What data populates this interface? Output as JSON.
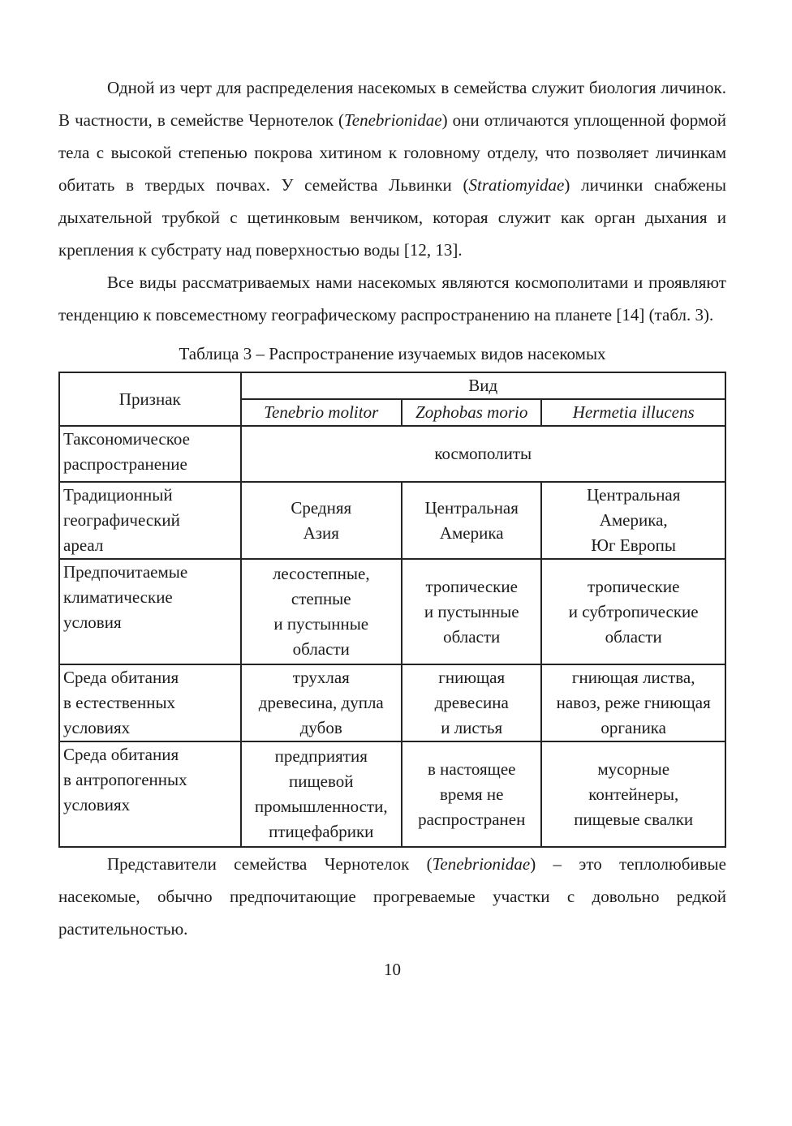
{
  "paragraphs": [
    {
      "segments": [
        {
          "t": "Одной из черт для распределения насекомых в семейства служит биология личинок. В частности, в семействе Чернотелок ("
        },
        {
          "t": "Tenebrionidae",
          "i": true
        },
        {
          "t": ") они отличаются уплощенной формой тела с высокой степенью покрова хитином к головному отделу, что позволяет личинкам обитать в твердых почвах. У семейства Львинки ("
        },
        {
          "t": "Stratiomyidae",
          "i": true
        },
        {
          "t": ") личинки снабжены дыхательной трубкой с щетинковым венчиком, которая служит как орган дыхания и крепления к субстрату над поверхностью воды [12, 13]."
        }
      ]
    },
    {
      "segments": [
        {
          "t": "Все виды рассматриваемых нами насекомых являются космополитами и проявляют тенденцию к повсеместному географическому распространению на планете [14] (табл. 3)."
        }
      ]
    },
    {
      "segments": [
        {
          "t": "Представители семейства Чернотелок ("
        },
        {
          "t": "Tenebrionidae",
          "i": true
        },
        {
          "t": ") – это теплолюбивые насекомые, обычно предпочитающие прогреваемые участки с довольно редкой растительностью."
        }
      ]
    }
  ],
  "table": {
    "caption": "Таблица 3 – Распространение изучаемых видов насекомых",
    "header": {
      "feature_col": "Признак",
      "group": "Вид",
      "species": [
        "Tenebrio molitor",
        "Zophobas morio",
        "Hermetia illucens"
      ]
    },
    "rows": [
      {
        "feature": "Таксономическое\nраспространение",
        "merged": "космополиты"
      },
      {
        "feature": "Традиционный\nгеографический\nареал",
        "cells": [
          "Средняя\nАзия",
          "Центральная\nАмерика",
          "Центральная\nАмерика,\nЮг Европы"
        ]
      },
      {
        "feature": "Предпочитаемые\nклиматические\nусловия",
        "cells": [
          "лесостепные,\nстепные\nи пустынные\nобласти",
          "тропические\nи пустынные\nобласти",
          "тропические\nи субтропические\nобласти"
        ]
      },
      {
        "feature": "Среда обитания\nв естественных\nусловиях",
        "cells": [
          "трухлая\nдревесина, дупла\nдубов",
          "гниющая\nдревесина\nи листья",
          "гниющая листва,\nнавоз, реже гниющая\nорганика"
        ]
      },
      {
        "feature": "Среда обитания\nв антропогенных\nусловиях",
        "cells": [
          "предприятия\nпищевой\nпромышленности,\nптицефабрики",
          "в настоящее\nвремя не\nраспространен",
          "мусорные\nконтейнеры,\nпищевые свалки"
        ]
      }
    ]
  },
  "page": {
    "number": "10"
  }
}
